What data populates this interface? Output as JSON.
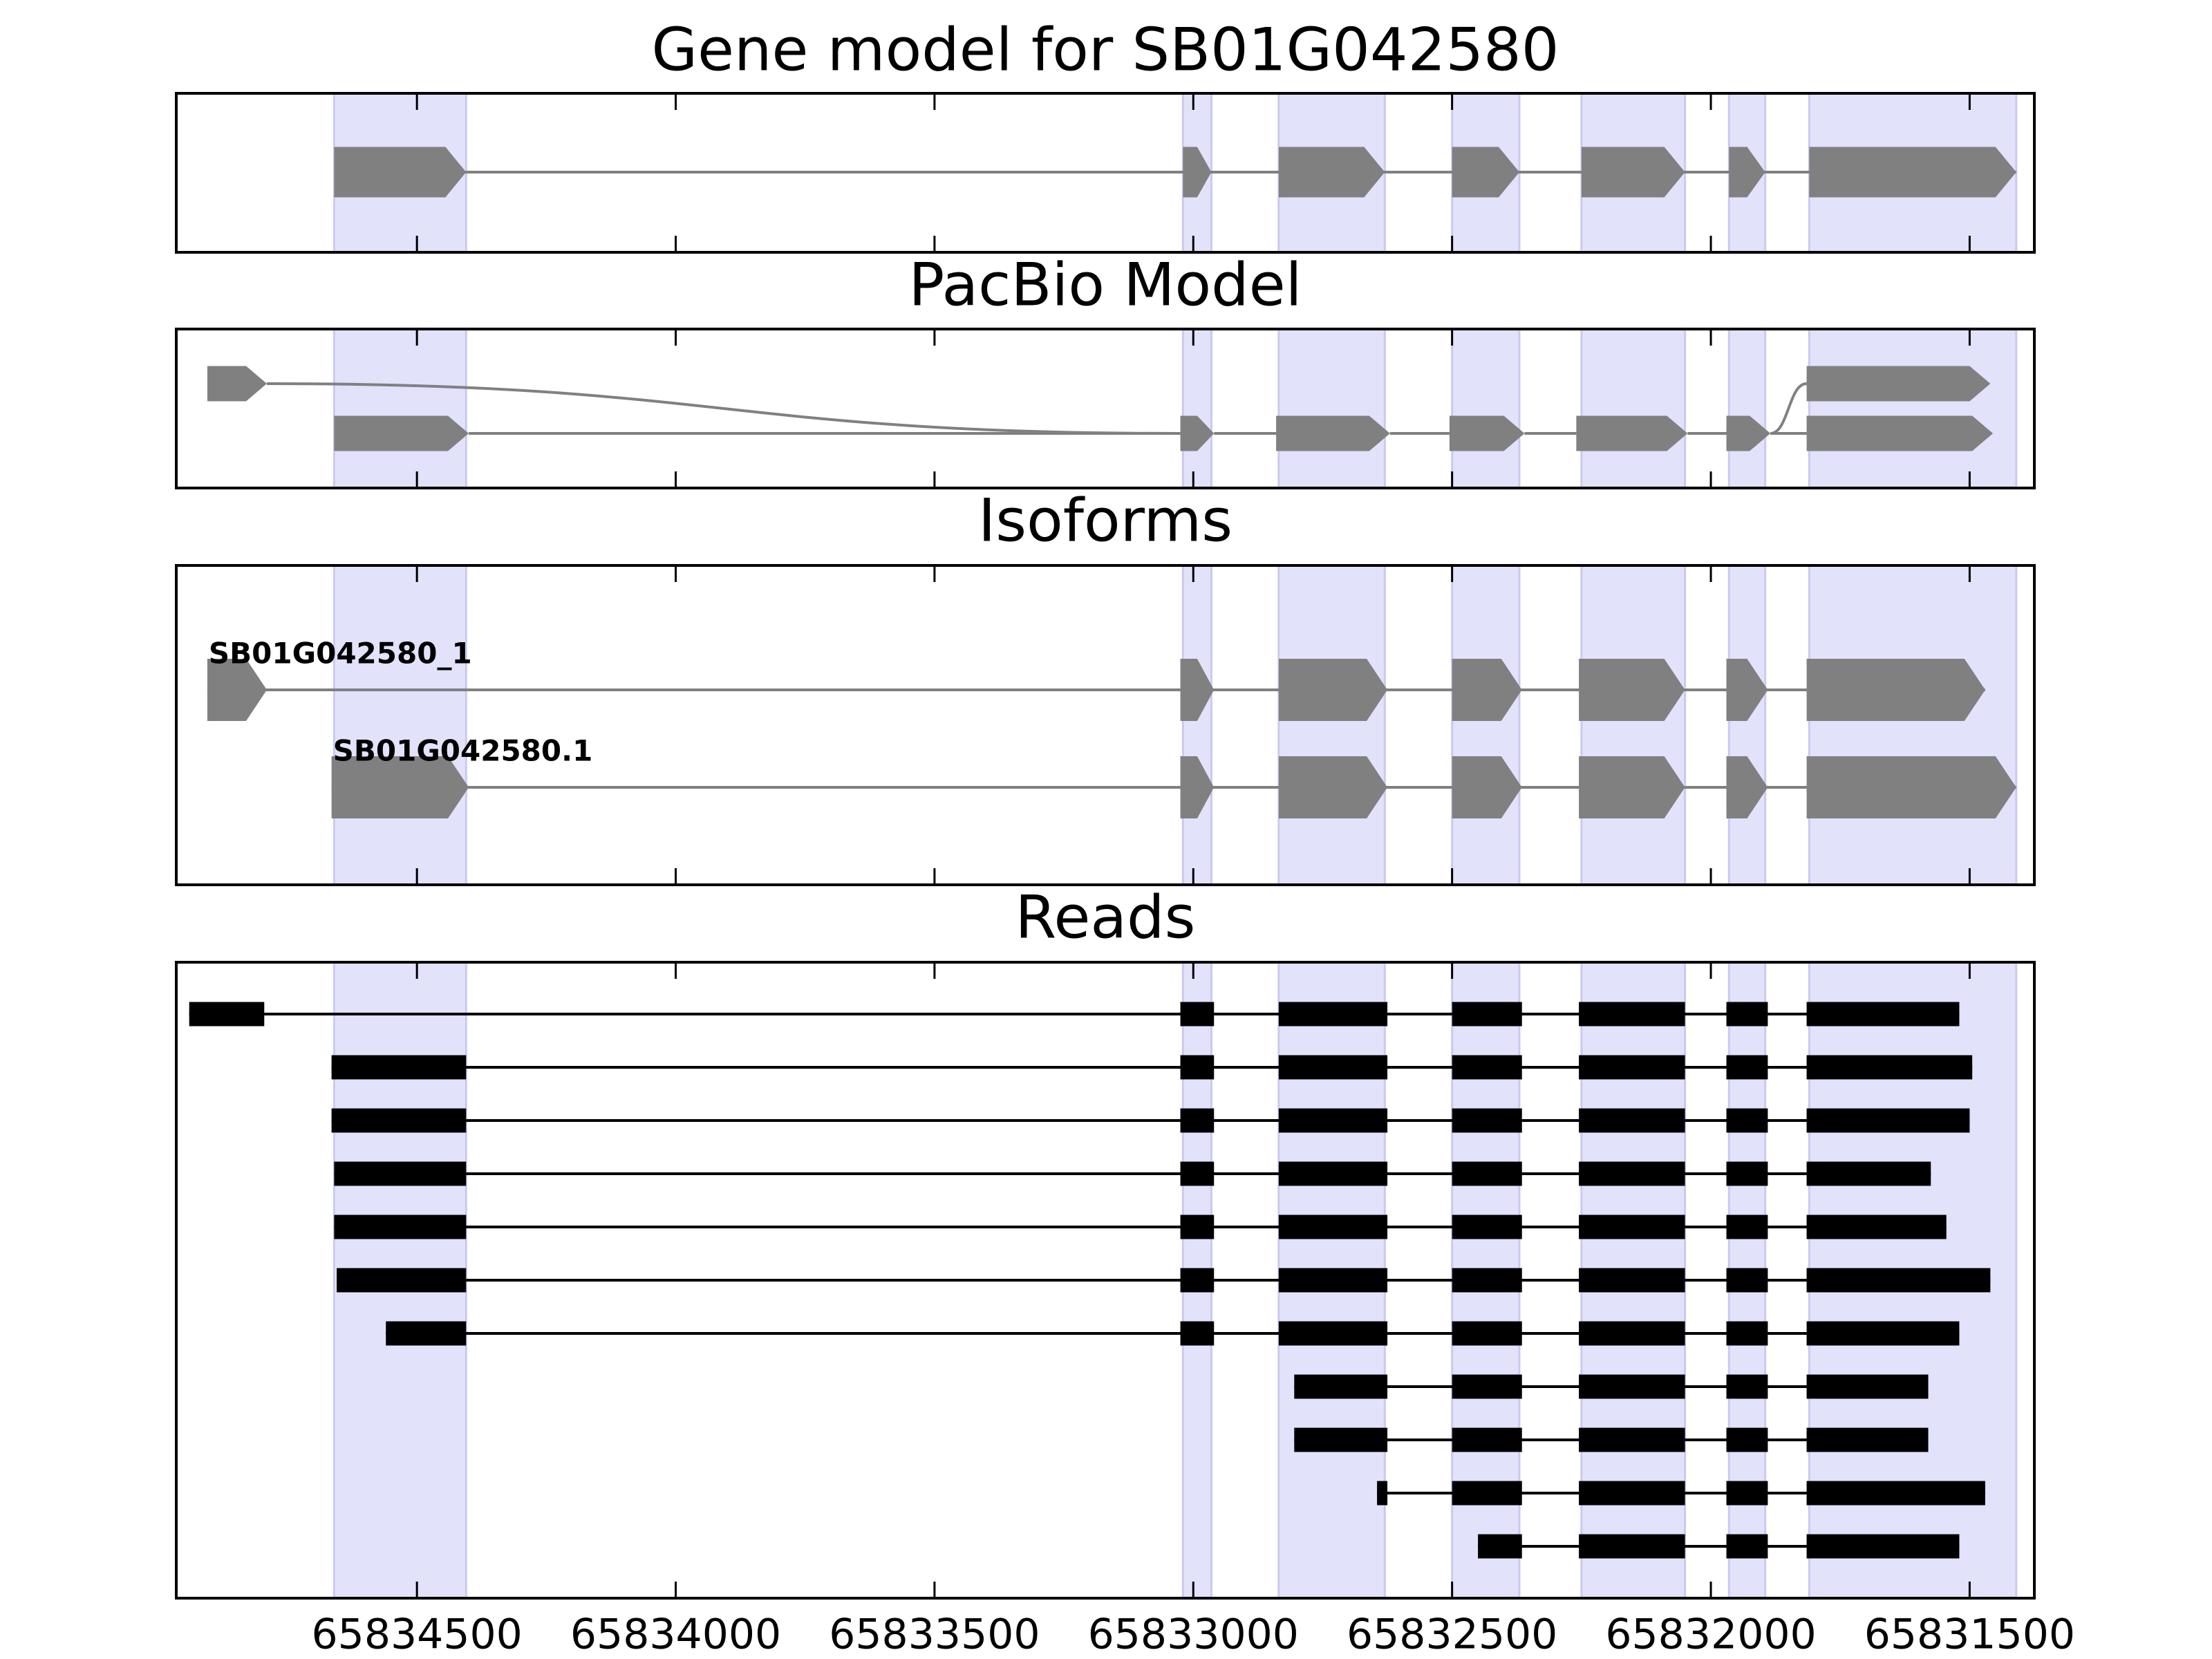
{
  "chart_data": [
    {
      "type": "gene",
      "title": "Gene model for SB01G042580",
      "exons": [
        [
          65834660,
          65834405
        ],
        [
          65833020,
          65832965
        ],
        [
          65832835,
          65832630
        ],
        [
          65832500,
          65832370
        ],
        [
          65832250,
          65832050
        ],
        [
          65831965,
          65831895
        ],
        [
          65831810,
          65831410
        ]
      ],
      "color": "#808080",
      "highlight_color": "#e2e2fb"
    },
    {
      "type": "graph",
      "title": "PacBio Model",
      "color": "#808080",
      "nodes": [
        {
          "start": 65834905,
          "end": 65834790,
          "row": 0
        },
        {
          "start": 65834660,
          "end": 65834400,
          "row": 1
        },
        {
          "start": 65833025,
          "end": 65832960,
          "row": 1
        },
        {
          "start": 65832840,
          "end": 65832620,
          "row": 1
        },
        {
          "start": 65832505,
          "end": 65832360,
          "row": 1
        },
        {
          "start": 65832260,
          "end": 65832045,
          "row": 1
        },
        {
          "start": 65831970,
          "end": 65831885,
          "row": 1
        },
        {
          "start": 65831815,
          "end": 65831455,
          "row": 1
        },
        {
          "start": 65831815,
          "end": 65831460,
          "row": 0
        }
      ],
      "edges": [
        [
          0,
          2
        ],
        [
          1,
          2
        ],
        [
          2,
          3
        ],
        [
          3,
          4
        ],
        [
          4,
          5
        ],
        [
          5,
          6
        ],
        [
          6,
          7
        ],
        [
          6,
          8
        ]
      ]
    },
    {
      "type": "isoform",
      "title": "Isoforms",
      "color": "#808080",
      "isoforms": [
        {
          "name": "SB01G042580_1",
          "blocks": [
            [
              65834905,
              65834790
            ],
            [
              65833025,
              65832960
            ],
            [
              65832835,
              65832625
            ],
            [
              65832500,
              65832365
            ],
            [
              65832255,
              65832050
            ],
            [
              65831970,
              65831890
            ],
            [
              65831815,
              65831470
            ]
          ]
        },
        {
          "name": "SB01G042580.1",
          "blocks": [
            [
              65834665,
              65834400
            ],
            [
              65833025,
              65832960
            ],
            [
              65832835,
              65832625
            ],
            [
              65832500,
              65832365
            ],
            [
              65832255,
              65832050
            ],
            [
              65831970,
              65831890
            ],
            [
              65831815,
              65831410
            ]
          ]
        }
      ]
    },
    {
      "type": "reads",
      "title": "Reads",
      "color": "#000000",
      "xlim": [
        65834965,
        65831375
      ],
      "xticks": [
        65834500,
        65834000,
        65833500,
        65833000,
        65832500,
        65832000,
        65831500
      ],
      "reads": [
        [
          [
            65834940,
            65834795
          ],
          [
            65833025,
            65832960
          ],
          [
            65832835,
            65832625
          ],
          [
            65832500,
            65832365
          ],
          [
            65832255,
            65832050
          ],
          [
            65831970,
            65831890
          ],
          [
            65831815,
            65831520
          ]
        ],
        [
          [
            65834665,
            65834405
          ],
          [
            65833025,
            65832960
          ],
          [
            65832835,
            65832625
          ],
          [
            65832500,
            65832365
          ],
          [
            65832255,
            65832050
          ],
          [
            65831970,
            65831890
          ],
          [
            65831815,
            65831495
          ]
        ],
        [
          [
            65834665,
            65834405
          ],
          [
            65833025,
            65832960
          ],
          [
            65832835,
            65832625
          ],
          [
            65832500,
            65832365
          ],
          [
            65832255,
            65832050
          ],
          [
            65831970,
            65831890
          ],
          [
            65831815,
            65831500
          ]
        ],
        [
          [
            65834660,
            65834405
          ],
          [
            65833025,
            65832960
          ],
          [
            65832835,
            65832625
          ],
          [
            65832500,
            65832365
          ],
          [
            65832255,
            65832050
          ],
          [
            65831970,
            65831890
          ],
          [
            65831815,
            65831575
          ]
        ],
        [
          [
            65834660,
            65834405
          ],
          [
            65833025,
            65832960
          ],
          [
            65832835,
            65832625
          ],
          [
            65832500,
            65832365
          ],
          [
            65832255,
            65832050
          ],
          [
            65831970,
            65831890
          ],
          [
            65831815,
            65831545
          ]
        ],
        [
          [
            65834655,
            65834405
          ],
          [
            65833025,
            65832960
          ],
          [
            65832835,
            65832625
          ],
          [
            65832500,
            65832365
          ],
          [
            65832255,
            65832050
          ],
          [
            65831970,
            65831890
          ],
          [
            65831815,
            65831460
          ]
        ],
        [
          [
            65834560,
            65834405
          ],
          [
            65833025,
            65832960
          ],
          [
            65832835,
            65832625
          ],
          [
            65832500,
            65832365
          ],
          [
            65832255,
            65832050
          ],
          [
            65831970,
            65831890
          ],
          [
            65831815,
            65831520
          ]
        ],
        [
          [
            65832805,
            65832625
          ],
          [
            65832500,
            65832365
          ],
          [
            65832255,
            65832050
          ],
          [
            65831970,
            65831890
          ],
          [
            65831815,
            65831580
          ]
        ],
        [
          [
            65832805,
            65832625
          ],
          [
            65832500,
            65832365
          ],
          [
            65832255,
            65832050
          ],
          [
            65831970,
            65831890
          ],
          [
            65831815,
            65831580
          ]
        ],
        [
          [
            65832645,
            65832625
          ],
          [
            65832500,
            65832365
          ],
          [
            65832255,
            65832050
          ],
          [
            65831970,
            65831890
          ],
          [
            65831815,
            65831470
          ]
        ],
        [
          [
            65832450,
            65832365
          ],
          [
            65832255,
            65832050
          ],
          [
            65831970,
            65831890
          ],
          [
            65831815,
            65831520
          ]
        ]
      ]
    }
  ]
}
